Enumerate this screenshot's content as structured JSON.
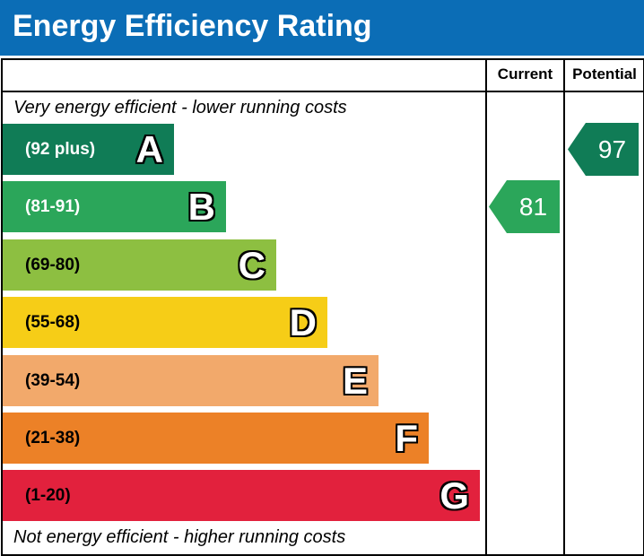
{
  "title": "Energy Efficiency Rating",
  "columns": {
    "current": "Current",
    "potential": "Potential"
  },
  "top_note": "Very energy efficient - lower running costs",
  "bottom_note": "Not energy efficient - higher running costs",
  "colors": {
    "header": "#0b6db6"
  },
  "chart_data": {
    "type": "bar",
    "categories": [
      "A",
      "B",
      "C",
      "D",
      "E",
      "F",
      "G"
    ],
    "bands": [
      {
        "letter": "A",
        "range": "(92 plus)",
        "color": "#107c56",
        "text_color": "#ffffff"
      },
      {
        "letter": "B",
        "range": "(81-91)",
        "color": "#2ba65a",
        "text_color": "#ffffff"
      },
      {
        "letter": "C",
        "range": "(69-80)",
        "color": "#8dbf41",
        "text_color": "#000000"
      },
      {
        "letter": "D",
        "range": "(55-68)",
        "color": "#f6cd17",
        "text_color": "#000000"
      },
      {
        "letter": "E",
        "range": "(39-54)",
        "color": "#f2a96b",
        "text_color": "#000000"
      },
      {
        "letter": "F",
        "range": "(21-38)",
        "color": "#ec8127",
        "text_color": "#000000"
      },
      {
        "letter": "G",
        "range": "(1-20)",
        "color": "#e2213d",
        "text_color": "#000000"
      }
    ],
    "current": {
      "value": "81",
      "band": "B",
      "color": "#2ba65a"
    },
    "potential": {
      "value": "97",
      "band": "A",
      "color": "#107c56"
    }
  }
}
